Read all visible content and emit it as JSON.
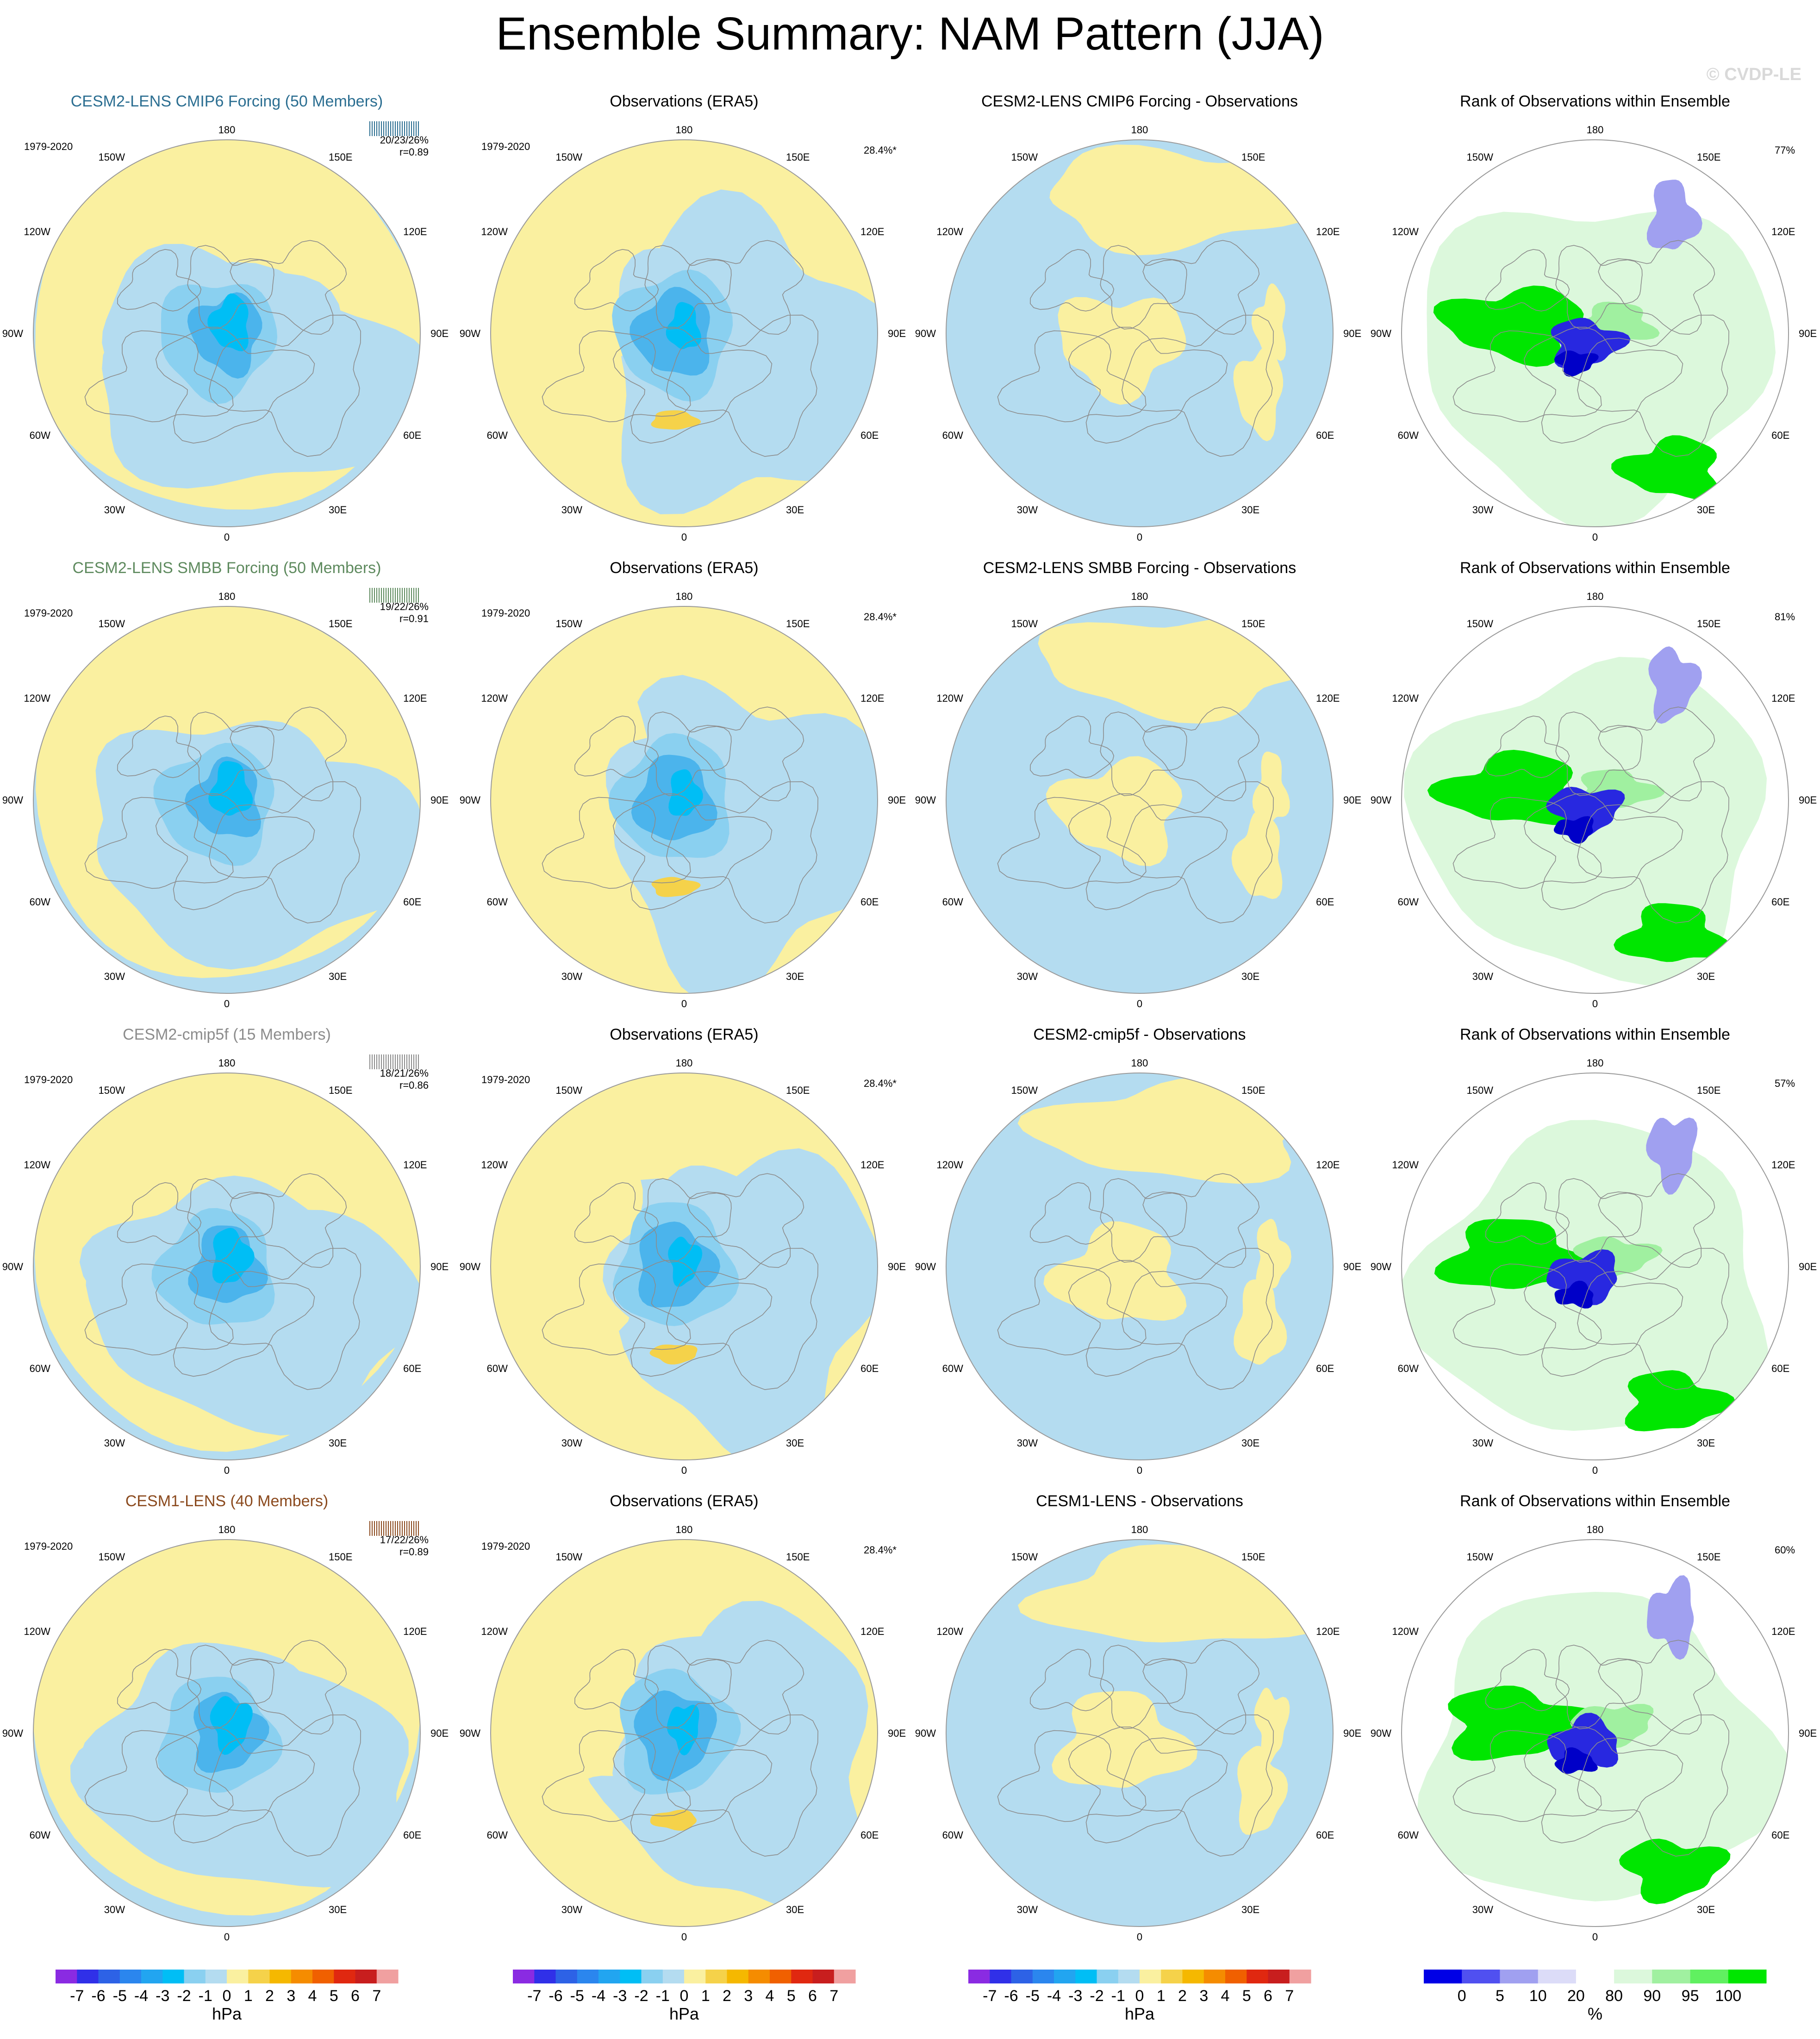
{
  "title": "Ensemble Summary: NAM Pattern (JJA)",
  "credit": "© CVDP-LE",
  "colors": {
    "land_contour": "#8c8c8c",
    "neg_light": "#b4dcf0",
    "pos_light": "#faf0a0",
    "map_outline": "#9a9a9a"
  },
  "lon_labels": [
    "180",
    "150E",
    "120E",
    "90E",
    "60E",
    "30E",
    "0",
    "30W",
    "60W",
    "90W",
    "120W",
    "150W"
  ],
  "rows": [
    {
      "ensemble": {
        "title": "CESM2-LENS CMIP6 Forcing (50 Members)",
        "color": "#2b6e91",
        "period": "1979-2020",
        "stats1": "20/23/26%",
        "stats2": "r=0.89"
      },
      "obs": {
        "title": "Observations (ERA5)",
        "period": "1979-2020",
        "pct": "28.4%*"
      },
      "diff": {
        "title": "CESM2-LENS CMIP6 Forcing - Observations"
      },
      "rank": {
        "title": "Rank of Observations within Ensemble",
        "pct": "77%"
      }
    },
    {
      "ensemble": {
        "title": "CESM2-LENS SMBB Forcing (50 Members)",
        "color": "#5e8a5e",
        "period": "1979-2020",
        "stats1": "19/22/26%",
        "stats2": "r=0.91"
      },
      "obs": {
        "title": "Observations (ERA5)",
        "period": "1979-2020",
        "pct": "28.4%*"
      },
      "diff": {
        "title": "CESM2-LENS SMBB Forcing - Observations"
      },
      "rank": {
        "title": "Rank of Observations within Ensemble",
        "pct": "81%"
      }
    },
    {
      "ensemble": {
        "title": "CESM2-cmip5f (15 Members)",
        "color": "#8c8c8c",
        "period": "1979-2020",
        "stats1": "18/21/26%",
        "stats2": "r=0.86"
      },
      "obs": {
        "title": "Observations (ERA5)",
        "period": "1979-2020",
        "pct": "28.4%*"
      },
      "diff": {
        "title": "CESM2-cmip5f - Observations"
      },
      "rank": {
        "title": "Rank of Observations within Ensemble",
        "pct": "57%"
      }
    },
    {
      "ensemble": {
        "title": "CESM1-LENS (40 Members)",
        "color": "#8b4a1e",
        "period": "1979-2020",
        "stats1": "17/22/26%",
        "stats2": "r=0.89"
      },
      "obs": {
        "title": "Observations (ERA5)",
        "period": "1979-2020",
        "pct": "28.4%*"
      },
      "diff": {
        "title": "CESM1-LENS - Observations"
      },
      "rank": {
        "title": "Rank of Observations within Ensemble",
        "pct": "60%"
      }
    }
  ],
  "colorbars": [
    {
      "labels": [
        "-7",
        "-6",
        "-5",
        "-4",
        "-3",
        "-2",
        "-1",
        "0",
        "1",
        "2",
        "3",
        "4",
        "5",
        "6",
        "7"
      ],
      "colors": [
        "#8a2be2",
        "#3030e8",
        "#2d62e6",
        "#2b86ee",
        "#22a5f0",
        "#00bef5",
        "#8ad0f0",
        "#b4dcf0",
        "#faf0a0",
        "#f5d24a",
        "#f5b800",
        "#f58c00",
        "#f06000",
        "#e02810",
        "#c81e1e",
        "#f0a0a0"
      ],
      "unit": "hPa"
    },
    {
      "labels": [
        "-7",
        "-6",
        "-5",
        "-4",
        "-3",
        "-2",
        "-1",
        "0",
        "1",
        "2",
        "3",
        "4",
        "5",
        "6",
        "7"
      ],
      "colors": [
        "#8a2be2",
        "#3030e8",
        "#2d62e6",
        "#2b86ee",
        "#22a5f0",
        "#00bef5",
        "#8ad0f0",
        "#b4dcf0",
        "#faf0a0",
        "#f5d24a",
        "#f5b800",
        "#f58c00",
        "#f06000",
        "#e02810",
        "#c81e1e",
        "#f0a0a0"
      ],
      "unit": "hPa"
    },
    {
      "labels": [
        "-7",
        "-6",
        "-5",
        "-4",
        "-3",
        "-2",
        "-1",
        "0",
        "1",
        "2",
        "3",
        "4",
        "5",
        "6",
        "7"
      ],
      "colors": [
        "#8a2be2",
        "#3030e8",
        "#2d62e6",
        "#2b86ee",
        "#22a5f0",
        "#00bef5",
        "#8ad0f0",
        "#b4dcf0",
        "#faf0a0",
        "#f5d24a",
        "#f5b800",
        "#f58c00",
        "#f06000",
        "#e02810",
        "#c81e1e",
        "#f0a0a0"
      ],
      "unit": "hPa"
    },
    {
      "labels": [
        "0",
        "5",
        "10",
        "20",
        "80",
        "90",
        "95",
        "100"
      ],
      "colors": [
        "#0000e6",
        "#5050f0",
        "#a0a0f0",
        "#dcdcf8",
        "#ffffff",
        "#dcf8dc",
        "#a0f0a0",
        "#60f060",
        "#00e600"
      ],
      "unit": "%"
    }
  ]
}
